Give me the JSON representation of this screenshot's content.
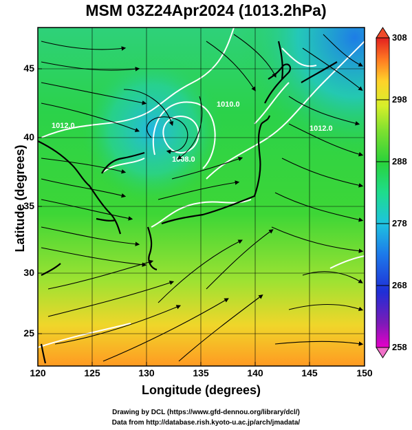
{
  "title": "MSM 03Z24Apr2024 (1013.2hPa)",
  "x_axis": {
    "label": "Longitude (degrees)",
    "ticks": [
      "120",
      "125",
      "130",
      "135",
      "140",
      "145",
      "150"
    ]
  },
  "y_axis": {
    "label": "Latitude  (degrees)",
    "ticks": [
      "25",
      "30",
      "35",
      "40",
      "45"
    ]
  },
  "colorbar": {
    "ticks": [
      "308",
      "298",
      "288",
      "278",
      "268",
      "258"
    ],
    "min": 258,
    "max": 308,
    "colors": [
      "#e600c8",
      "#4b1fb0",
      "#1f2fd6",
      "#1d79ea",
      "#1ec3e0",
      "#1edc8c",
      "#2ad23a",
      "#7ee030",
      "#d6ef2a",
      "#ffd22a",
      "#ff9a22",
      "#ff5a22",
      "#e32020"
    ]
  },
  "contour_labels": [
    "1012.0",
    "1010.0",
    "1012.0",
    "1008.0"
  ],
  "credits": {
    "line1": "Drawing by DCL (https://www.gfd-dennou.org/library/dcl/)",
    "line2": "Data from http://database.rish.kyoto-u.ac.jp/arch/jmadata/"
  }
}
